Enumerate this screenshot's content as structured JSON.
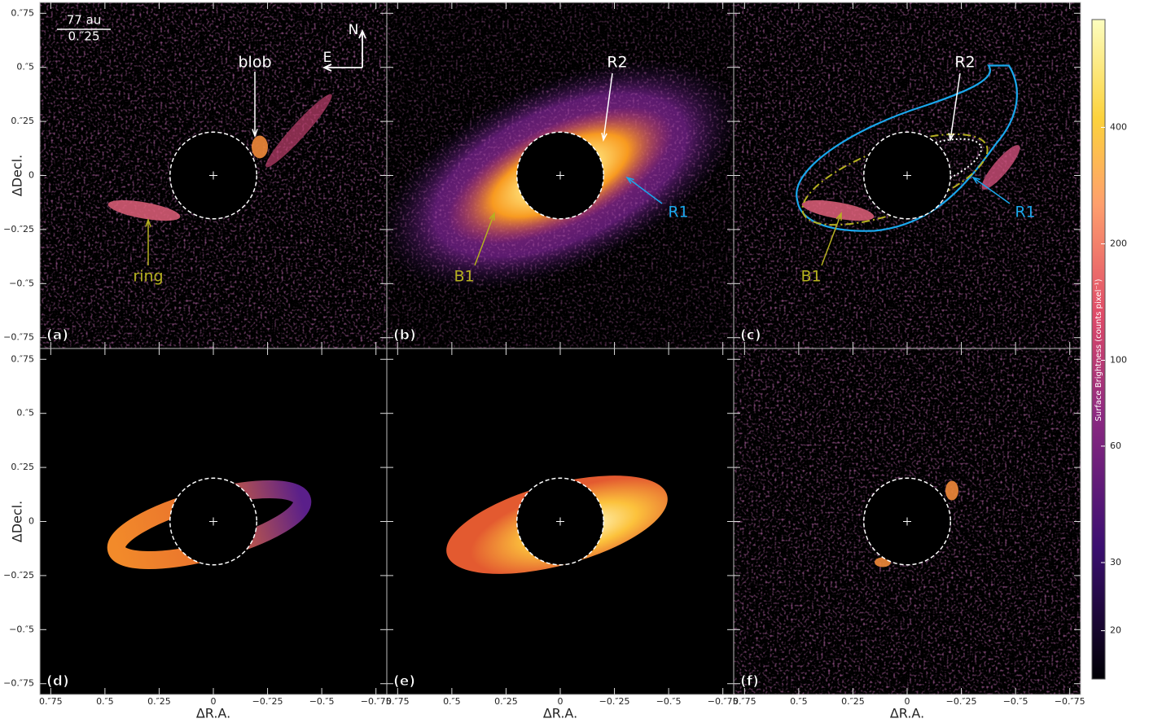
{
  "figure": {
    "xlabel": "ΔR.A.",
    "ylabel": "ΔDecl.",
    "xlim": [
      0.8,
      -0.8
    ],
    "ylim": [
      -0.8,
      0.8
    ],
    "xticks": [
      {
        "value": 0.75,
        "label": "0.″75"
      },
      {
        "value": 0.5,
        "label": "0.″5"
      },
      {
        "value": 0.25,
        "label": "0.″25"
      },
      0,
      {
        "value": -0.25,
        "label": "−0.″25"
      },
      {
        "value": -0.5,
        "label": "−0.″5"
      },
      {
        "value": -0.75,
        "label": "−0.″75"
      }
    ],
    "yticks": [
      {
        "value": 0.75,
        "label": "0.″75"
      },
      {
        "value": 0.5,
        "label": "0.″5"
      },
      {
        "value": 0.25,
        "label": "0.″25"
      },
      0,
      {
        "value": -0.25,
        "label": "−0.″25"
      },
      {
        "value": -0.5,
        "label": "−0.″5"
      },
      {
        "value": -0.75,
        "label": "−0.″75"
      }
    ],
    "scale_bar": {
      "distance": "77 au",
      "angle": "0.″25"
    },
    "compass": {
      "north": "N",
      "east": "E"
    },
    "panels": [
      {
        "label": "(a)",
        "annotations": [
          {
            "text": "blob",
            "color": "#ffffff"
          },
          {
            "text": "ring",
            "color": "#b5b020"
          }
        ]
      },
      {
        "label": "(b)",
        "annotations": [
          {
            "text": "R2",
            "color": "#ffffff"
          },
          {
            "text": "R1",
            "color": "#1aa7ec"
          },
          {
            "text": "B1",
            "color": "#b5b020"
          }
        ]
      },
      {
        "label": "(c)",
        "annotations": [
          {
            "text": "R2",
            "color": "#ffffff"
          },
          {
            "text": "R1",
            "color": "#1aa7ec"
          },
          {
            "text": "B1",
            "color": "#b5b020"
          }
        ]
      },
      {
        "label": "(d)",
        "annotations": []
      },
      {
        "label": "(e)",
        "annotations": []
      },
      {
        "label": "(f)",
        "annotations": []
      }
    ],
    "colorbar": {
      "label": "Surface Brightness (counts pixel⁻¹)",
      "scale": "log",
      "lim": [
        15,
        760
      ],
      "ticks": [
        20,
        30,
        60,
        100,
        200,
        400
      ]
    }
  }
}
